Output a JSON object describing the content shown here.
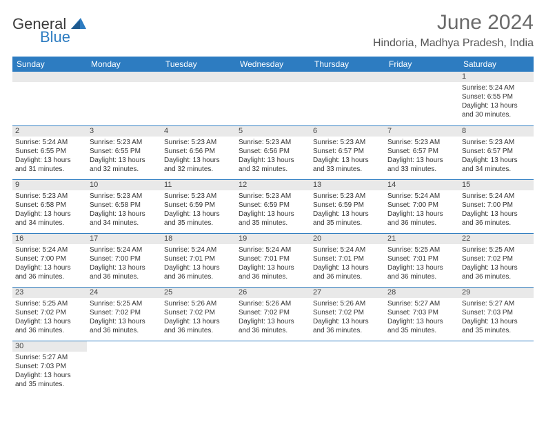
{
  "logo": {
    "word1": "General",
    "word2": "Blue"
  },
  "title": "June 2024",
  "location": "Hindoria, Madhya Pradesh, India",
  "colors": {
    "header_bg": "#2d7cc1",
    "header_text": "#ffffff",
    "daynum_bg": "#e9e9e9",
    "daynum_text": "#444444",
    "divider": "#2d7cc1",
    "title_color": "#6a6a6a",
    "location_color": "#555555"
  },
  "weekdays": [
    "Sunday",
    "Monday",
    "Tuesday",
    "Wednesday",
    "Thursday",
    "Friday",
    "Saturday"
  ],
  "weeks": [
    [
      null,
      null,
      null,
      null,
      null,
      null,
      {
        "n": "1",
        "sr": "Sunrise: 5:24 AM",
        "ss": "Sunset: 6:55 PM",
        "d1": "Daylight: 13 hours",
        "d2": "and 30 minutes."
      }
    ],
    [
      {
        "n": "2",
        "sr": "Sunrise: 5:24 AM",
        "ss": "Sunset: 6:55 PM",
        "d1": "Daylight: 13 hours",
        "d2": "and 31 minutes."
      },
      {
        "n": "3",
        "sr": "Sunrise: 5:23 AM",
        "ss": "Sunset: 6:55 PM",
        "d1": "Daylight: 13 hours",
        "d2": "and 32 minutes."
      },
      {
        "n": "4",
        "sr": "Sunrise: 5:23 AM",
        "ss": "Sunset: 6:56 PM",
        "d1": "Daylight: 13 hours",
        "d2": "and 32 minutes."
      },
      {
        "n": "5",
        "sr": "Sunrise: 5:23 AM",
        "ss": "Sunset: 6:56 PM",
        "d1": "Daylight: 13 hours",
        "d2": "and 32 minutes."
      },
      {
        "n": "6",
        "sr": "Sunrise: 5:23 AM",
        "ss": "Sunset: 6:57 PM",
        "d1": "Daylight: 13 hours",
        "d2": "and 33 minutes."
      },
      {
        "n": "7",
        "sr": "Sunrise: 5:23 AM",
        "ss": "Sunset: 6:57 PM",
        "d1": "Daylight: 13 hours",
        "d2": "and 33 minutes."
      },
      {
        "n": "8",
        "sr": "Sunrise: 5:23 AM",
        "ss": "Sunset: 6:57 PM",
        "d1": "Daylight: 13 hours",
        "d2": "and 34 minutes."
      }
    ],
    [
      {
        "n": "9",
        "sr": "Sunrise: 5:23 AM",
        "ss": "Sunset: 6:58 PM",
        "d1": "Daylight: 13 hours",
        "d2": "and 34 minutes."
      },
      {
        "n": "10",
        "sr": "Sunrise: 5:23 AM",
        "ss": "Sunset: 6:58 PM",
        "d1": "Daylight: 13 hours",
        "d2": "and 34 minutes."
      },
      {
        "n": "11",
        "sr": "Sunrise: 5:23 AM",
        "ss": "Sunset: 6:59 PM",
        "d1": "Daylight: 13 hours",
        "d2": "and 35 minutes."
      },
      {
        "n": "12",
        "sr": "Sunrise: 5:23 AM",
        "ss": "Sunset: 6:59 PM",
        "d1": "Daylight: 13 hours",
        "d2": "and 35 minutes."
      },
      {
        "n": "13",
        "sr": "Sunrise: 5:23 AM",
        "ss": "Sunset: 6:59 PM",
        "d1": "Daylight: 13 hours",
        "d2": "and 35 minutes."
      },
      {
        "n": "14",
        "sr": "Sunrise: 5:24 AM",
        "ss": "Sunset: 7:00 PM",
        "d1": "Daylight: 13 hours",
        "d2": "and 36 minutes."
      },
      {
        "n": "15",
        "sr": "Sunrise: 5:24 AM",
        "ss": "Sunset: 7:00 PM",
        "d1": "Daylight: 13 hours",
        "d2": "and 36 minutes."
      }
    ],
    [
      {
        "n": "16",
        "sr": "Sunrise: 5:24 AM",
        "ss": "Sunset: 7:00 PM",
        "d1": "Daylight: 13 hours",
        "d2": "and 36 minutes."
      },
      {
        "n": "17",
        "sr": "Sunrise: 5:24 AM",
        "ss": "Sunset: 7:00 PM",
        "d1": "Daylight: 13 hours",
        "d2": "and 36 minutes."
      },
      {
        "n": "18",
        "sr": "Sunrise: 5:24 AM",
        "ss": "Sunset: 7:01 PM",
        "d1": "Daylight: 13 hours",
        "d2": "and 36 minutes."
      },
      {
        "n": "19",
        "sr": "Sunrise: 5:24 AM",
        "ss": "Sunset: 7:01 PM",
        "d1": "Daylight: 13 hours",
        "d2": "and 36 minutes."
      },
      {
        "n": "20",
        "sr": "Sunrise: 5:24 AM",
        "ss": "Sunset: 7:01 PM",
        "d1": "Daylight: 13 hours",
        "d2": "and 36 minutes."
      },
      {
        "n": "21",
        "sr": "Sunrise: 5:25 AM",
        "ss": "Sunset: 7:01 PM",
        "d1": "Daylight: 13 hours",
        "d2": "and 36 minutes."
      },
      {
        "n": "22",
        "sr": "Sunrise: 5:25 AM",
        "ss": "Sunset: 7:02 PM",
        "d1": "Daylight: 13 hours",
        "d2": "and 36 minutes."
      }
    ],
    [
      {
        "n": "23",
        "sr": "Sunrise: 5:25 AM",
        "ss": "Sunset: 7:02 PM",
        "d1": "Daylight: 13 hours",
        "d2": "and 36 minutes."
      },
      {
        "n": "24",
        "sr": "Sunrise: 5:25 AM",
        "ss": "Sunset: 7:02 PM",
        "d1": "Daylight: 13 hours",
        "d2": "and 36 minutes."
      },
      {
        "n": "25",
        "sr": "Sunrise: 5:26 AM",
        "ss": "Sunset: 7:02 PM",
        "d1": "Daylight: 13 hours",
        "d2": "and 36 minutes."
      },
      {
        "n": "26",
        "sr": "Sunrise: 5:26 AM",
        "ss": "Sunset: 7:02 PM",
        "d1": "Daylight: 13 hours",
        "d2": "and 36 minutes."
      },
      {
        "n": "27",
        "sr": "Sunrise: 5:26 AM",
        "ss": "Sunset: 7:02 PM",
        "d1": "Daylight: 13 hours",
        "d2": "and 36 minutes."
      },
      {
        "n": "28",
        "sr": "Sunrise: 5:27 AM",
        "ss": "Sunset: 7:03 PM",
        "d1": "Daylight: 13 hours",
        "d2": "and 35 minutes."
      },
      {
        "n": "29",
        "sr": "Sunrise: 5:27 AM",
        "ss": "Sunset: 7:03 PM",
        "d1": "Daylight: 13 hours",
        "d2": "and 35 minutes."
      }
    ],
    [
      {
        "n": "30",
        "sr": "Sunrise: 5:27 AM",
        "ss": "Sunset: 7:03 PM",
        "d1": "Daylight: 13 hours",
        "d2": "and 35 minutes."
      },
      null,
      null,
      null,
      null,
      null,
      null
    ]
  ]
}
